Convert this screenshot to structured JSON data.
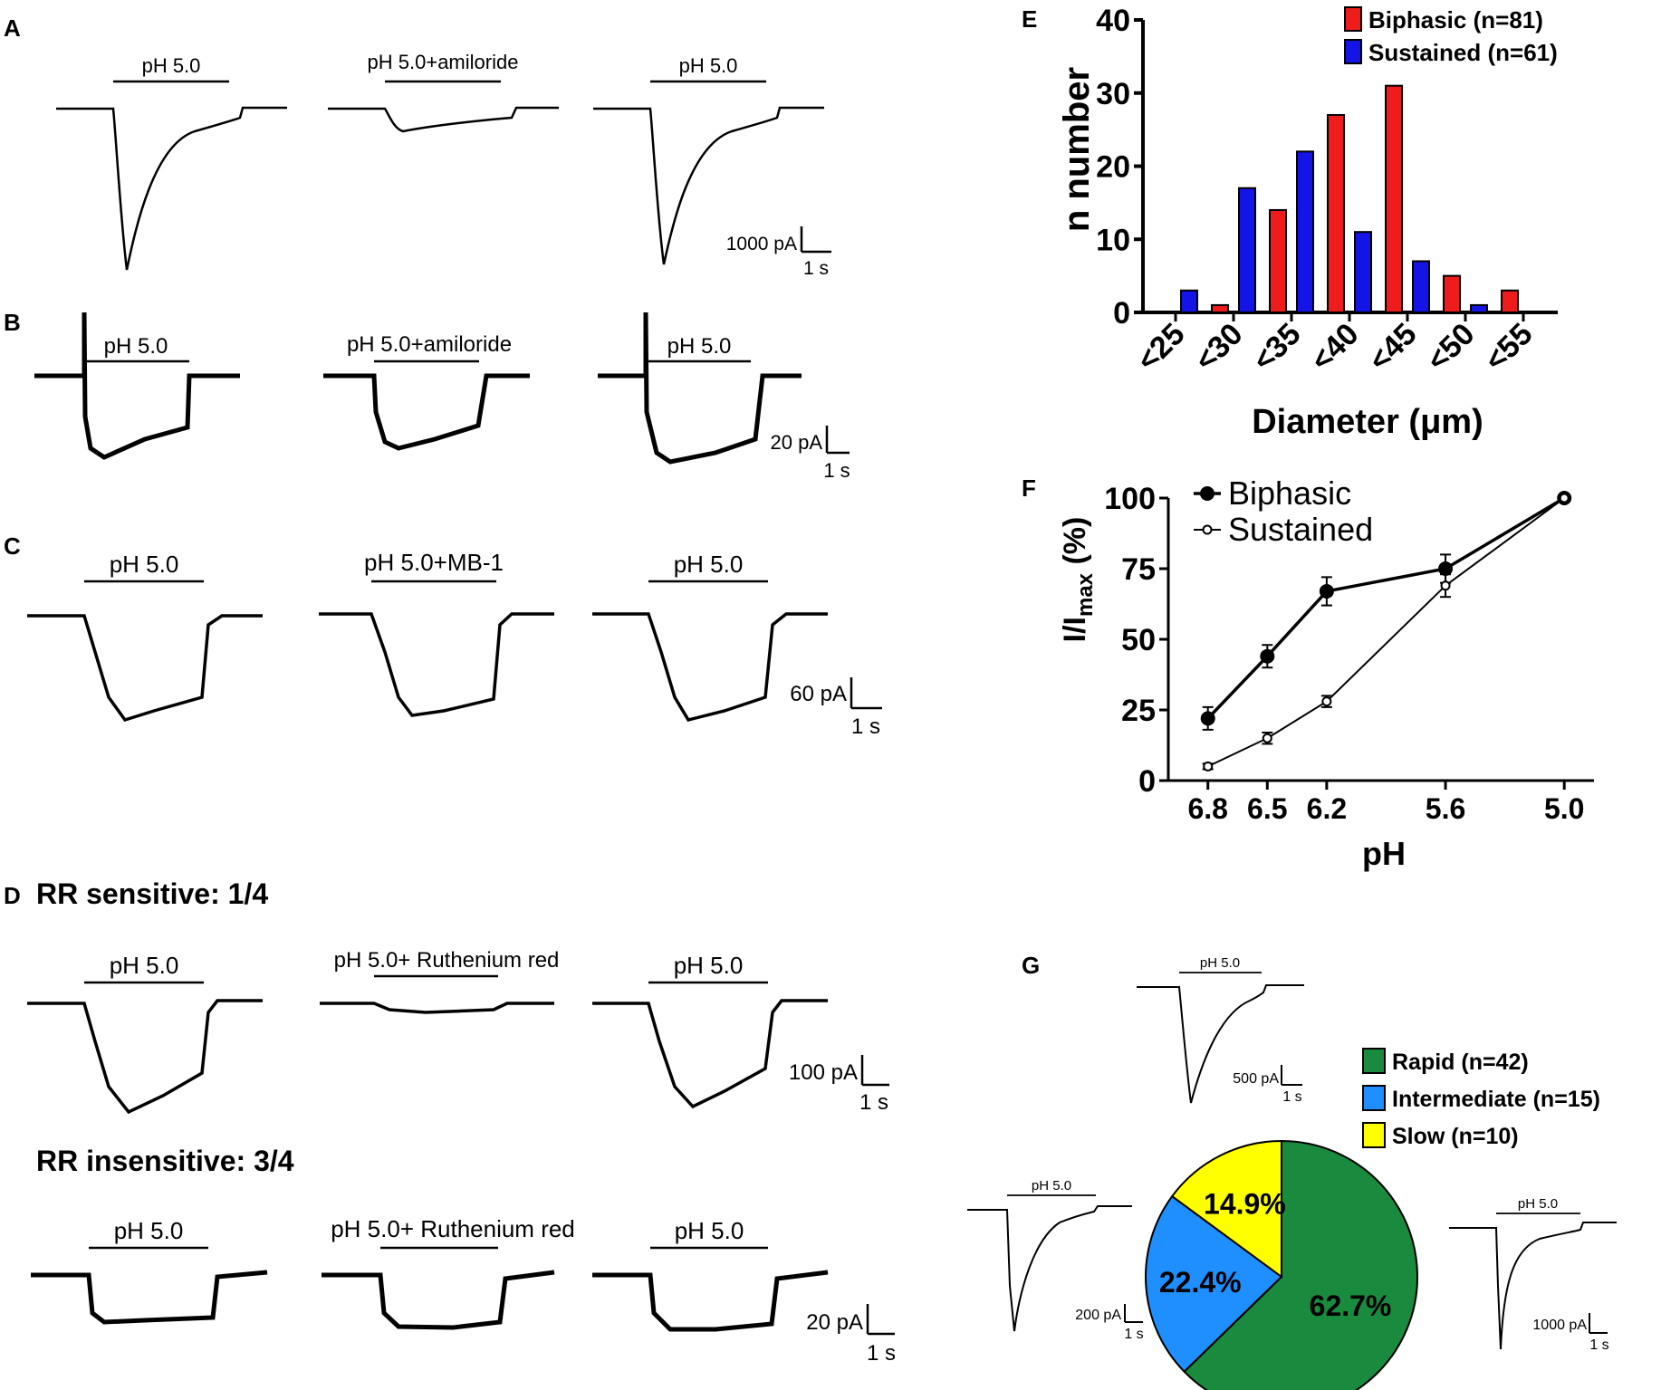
{
  "panel_labels": {
    "A": "A",
    "B": "B",
    "C": "C",
    "D": "D",
    "E": "E",
    "F": "F",
    "G": "G"
  },
  "traces": {
    "a": {
      "labels": [
        "pH 5.0",
        "pH 5.0+amiloride",
        "pH 5.0"
      ],
      "scale": {
        "y": "1000 pA",
        "x": "1 s"
      }
    },
    "b": {
      "labels": [
        "pH 5.0",
        "pH 5.0+amiloride",
        "pH 5.0"
      ],
      "scale": {
        "y": "20 pA",
        "x": "1 s"
      }
    },
    "c": {
      "labels": [
        "pH 5.0",
        "pH 5.0+MB-1",
        "pH 5.0"
      ],
      "scale": {
        "y": "60 pA",
        "x": "1 s"
      }
    },
    "d_sensitive": {
      "title": "RR sensitive: 1/4",
      "labels": [
        "pH 5.0",
        "pH 5.0+ Ruthenium red",
        "pH 5.0"
      ],
      "scale": {
        "y": "100 pA",
        "x": "1 s"
      }
    },
    "d_insensitive": {
      "title": "RR insensitive: 3/4",
      "labels": [
        "pH 5.0",
        "pH 5.0+ Ruthenium red",
        "pH 5.0"
      ],
      "scale": {
        "y": "20 pA",
        "x": "1 s"
      }
    }
  },
  "chart_data": [
    {
      "id": "E",
      "type": "bar",
      "categories": [
        "<25",
        "<30",
        "<35",
        "<40",
        "<45",
        "<50",
        "<55"
      ],
      "series": [
        {
          "name": "Biphasic (n=81)",
          "color": "#ee1c1c",
          "values": [
            0,
            1,
            14,
            27,
            31,
            5,
            3
          ]
        },
        {
          "name": "Sustained (n=61)",
          "color": "#1414e6",
          "values": [
            3,
            17,
            22,
            11,
            7,
            1,
            0
          ]
        }
      ],
      "xlabel": "Diameter (μm)",
      "ylabel": "n number",
      "ylim": [
        0,
        40
      ],
      "yticks": [
        0,
        10,
        20,
        30,
        40
      ],
      "legend": "top-right"
    },
    {
      "id": "F",
      "type": "line",
      "x_labels": [
        "6.8",
        "6.5",
        "6.2",
        "5.6",
        "5.0"
      ],
      "x": [
        6.8,
        6.5,
        6.2,
        5.6,
        5.0
      ],
      "series": [
        {
          "name": "Biphasic",
          "marker": "filled-circle",
          "values": [
            22,
            44,
            67,
            75,
            100
          ],
          "errors": [
            4,
            4,
            5,
            5,
            0
          ]
        },
        {
          "name": "Sustained",
          "marker": "open-circle",
          "values": [
            5,
            15,
            28,
            69,
            100
          ],
          "errors": [
            1,
            2,
            2,
            4,
            0
          ]
        }
      ],
      "xlabel": "pH",
      "ylabel": {
        "main": "I/I",
        "sub": "max",
        "unit": " (%)"
      },
      "ylim": [
        0,
        100
      ],
      "yticks": [
        0,
        25,
        50,
        75,
        100
      ],
      "legend": "top-left"
    },
    {
      "id": "G",
      "type": "pie",
      "slices": [
        {
          "name": "Rapid (n=42)",
          "label": "62.7%",
          "value": 62.7,
          "color": "#1a8a3e"
        },
        {
          "name": "Intermediate (n=15)",
          "label": "22.4%",
          "value": 22.4,
          "color": "#1f8fff"
        },
        {
          "name": "Slow (n=10)",
          "label": "14.9%",
          "value": 14.9,
          "color": "#ffff00"
        }
      ],
      "insets": [
        {
          "label": "pH 5.0",
          "scale": {
            "y": "500 pA",
            "x": "1 s"
          }
        },
        {
          "label": "pH 5.0",
          "scale": {
            "y": "200 pA",
            "x": "1 s"
          }
        },
        {
          "label": "pH 5.0",
          "scale": {
            "y": "1000 pA",
            "x": "1 s"
          }
        }
      ]
    }
  ]
}
